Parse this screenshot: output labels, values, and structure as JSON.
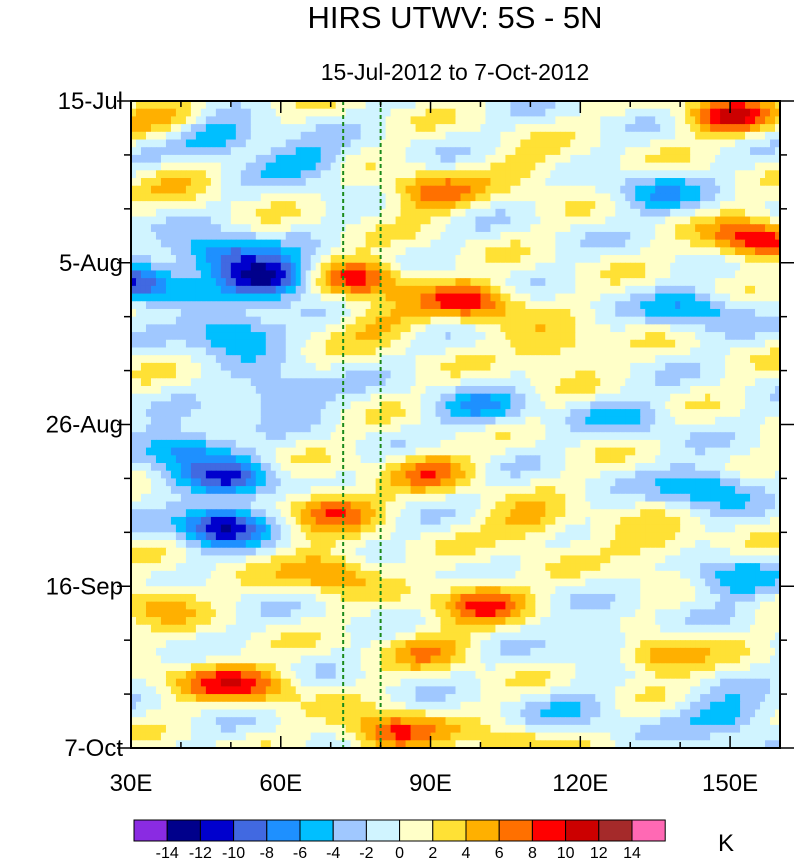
{
  "chart_data": {
    "type": "heatmap",
    "title": "HIRS UTWV: 5S - 5N",
    "subtitle": "15-Jul-2012 to 7-Oct-2012",
    "x_axis": {
      "range": [
        30,
        160
      ],
      "ticks": [
        {
          "value": 30,
          "label": "30E"
        },
        {
          "value": 60,
          "label": "60E"
        },
        {
          "value": 90,
          "label": "90E"
        },
        {
          "value": 120,
          "label": "120E"
        },
        {
          "value": 150,
          "label": "150E"
        }
      ],
      "minor_step": 10
    },
    "y_axis": {
      "range_days": [
        0,
        84
      ],
      "direction": "down",
      "ticks": [
        {
          "value": 0,
          "label": "15-Jul"
        },
        {
          "value": 21,
          "label": "5-Aug"
        },
        {
          "value": 42,
          "label": "26-Aug"
        },
        {
          "value": 63,
          "label": "16-Sep"
        },
        {
          "value": 84,
          "label": "7-Oct"
        }
      ],
      "minor_step": 7
    },
    "reference_lines": [
      {
        "x": 72.5,
        "color": "#1a8a1a",
        "style": "dashed"
      },
      {
        "x": 80,
        "color": "#1a8a1a",
        "style": "dashed"
      }
    ],
    "colorbar": {
      "unit": "K",
      "levels": [
        -14,
        -12,
        -10,
        -8,
        -6,
        -4,
        -2,
        0,
        2,
        4,
        6,
        8,
        10,
        12,
        14
      ],
      "labels": [
        "-14",
        "-12",
        "-10",
        "-8",
        "-6",
        "-4",
        "-2",
        "0",
        "2",
        "4",
        "6",
        "8",
        "10",
        "12",
        "14"
      ],
      "colors": [
        "#8a2be2",
        "#00008b",
        "#0000cd",
        "#4169e1",
        "#1e90ff",
        "#00bfff",
        "#a0c8ff",
        "#d0f4ff",
        "#ffffc8",
        "#ffe135",
        "#ffb000",
        "#ff7000",
        "#ff0000",
        "#cc0000",
        "#a52a2a",
        "#ff69b4"
      ]
    },
    "features": [
      {
        "lon": 38,
        "day": 2,
        "value": 5
      },
      {
        "lon": 150,
        "day": 2,
        "value": 9
      },
      {
        "lon": 47,
        "day": 5,
        "value": -7
      },
      {
        "lon": 65,
        "day": 8,
        "value": -5
      },
      {
        "lon": 40,
        "day": 10,
        "value": 3
      },
      {
        "lon": 90,
        "day": 12,
        "value": 7
      },
      {
        "lon": 110,
        "day": 9,
        "value": 3
      },
      {
        "lon": 135,
        "day": 12,
        "value": -5
      },
      {
        "lon": 155,
        "day": 18,
        "value": 10
      },
      {
        "lon": 48,
        "day": 20,
        "value": -9
      },
      {
        "lon": 58,
        "day": 23,
        "value": -13
      },
      {
        "lon": 31,
        "day": 24,
        "value": -10
      },
      {
        "lon": 76,
        "day": 23,
        "value": 9
      },
      {
        "lon": 98,
        "day": 26,
        "value": 9
      },
      {
        "lon": 143,
        "day": 27,
        "value": -6
      },
      {
        "lon": 50,
        "day": 30,
        "value": -8
      },
      {
        "lon": 80,
        "day": 29,
        "value": 4
      },
      {
        "lon": 115,
        "day": 32,
        "value": 5
      },
      {
        "lon": 60,
        "day": 38,
        "value": -6
      },
      {
        "lon": 100,
        "day": 40,
        "value": -5
      },
      {
        "lon": 130,
        "day": 41,
        "value": -4
      },
      {
        "lon": 40,
        "day": 45,
        "value": -8
      },
      {
        "lon": 50,
        "day": 49,
        "value": -9
      },
      {
        "lon": 90,
        "day": 48,
        "value": 6
      },
      {
        "lon": 145,
        "day": 50,
        "value": -7
      },
      {
        "lon": 48,
        "day": 55,
        "value": -12
      },
      {
        "lon": 70,
        "day": 53,
        "value": 8
      },
      {
        "lon": 110,
        "day": 55,
        "value": 5
      },
      {
        "lon": 135,
        "day": 58,
        "value": 4
      },
      {
        "lon": 70,
        "day": 61,
        "value": 7
      },
      {
        "lon": 100,
        "day": 65,
        "value": 8
      },
      {
        "lon": 35,
        "day": 65,
        "value": 5
      },
      {
        "lon": 150,
        "day": 62,
        "value": -6
      },
      {
        "lon": 125,
        "day": 70,
        "value": -5
      },
      {
        "lon": 90,
        "day": 71,
        "value": 5
      },
      {
        "lon": 135,
        "day": 72,
        "value": 7
      },
      {
        "lon": 55,
        "day": 76,
        "value": 6
      },
      {
        "lon": 45,
        "day": 75,
        "value": 5
      },
      {
        "lon": 120,
        "day": 79,
        "value": -3
      },
      {
        "lon": 150,
        "day": 80,
        "value": -6
      },
      {
        "lon": 82,
        "day": 82,
        "value": 9
      },
      {
        "lon": 105,
        "day": 84,
        "value": 4
      }
    ]
  }
}
